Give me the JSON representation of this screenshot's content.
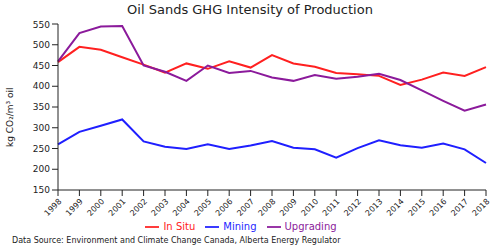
{
  "chart_data": {
    "type": "line",
    "title": "Oil Sands GHG Intensity of Production",
    "y_label": "kg CO₂/m³ oil",
    "annotation": "Data Source: Environment and Climate Change Canada, Alberta Energy Regulator",
    "categories": [
      "1998",
      "1999",
      "2000",
      "2001",
      "2002",
      "2003",
      "2004",
      "2005",
      "2006",
      "2007",
      "2008",
      "2009",
      "2010",
      "2011",
      "2012",
      "2013",
      "2014",
      "2015",
      "2016",
      "2017",
      "2018"
    ],
    "series": [
      {
        "name": "Mining",
        "color": "#1f1fff",
        "values": [
          260,
          290,
          305,
          320,
          267,
          254,
          249,
          260,
          249,
          257,
          268,
          252,
          248,
          228,
          251,
          270,
          258,
          252,
          262,
          248,
          215
        ]
      },
      {
        "name": "In Situ",
        "color": "#ff2020",
        "values": [
          458,
          495,
          488,
          470,
          452,
          433,
          455,
          442,
          460,
          445,
          475,
          455,
          447,
          432,
          429,
          425,
          403,
          416,
          433,
          425,
          446
        ]
      },
      {
        "name": "Upgrading",
        "color": "#8b1a9b",
        "values": [
          460,
          528,
          544,
          545,
          450,
          435,
          413,
          450,
          432,
          437,
          421,
          413,
          427,
          418,
          423,
          430,
          415,
          390,
          365,
          341,
          356
        ]
      }
    ],
    "ylim": [
      150,
      550
    ],
    "yticks": [
      150,
      200,
      250,
      300,
      350,
      400,
      450,
      500,
      550
    ],
    "grid": false,
    "legend": "bottom"
  }
}
